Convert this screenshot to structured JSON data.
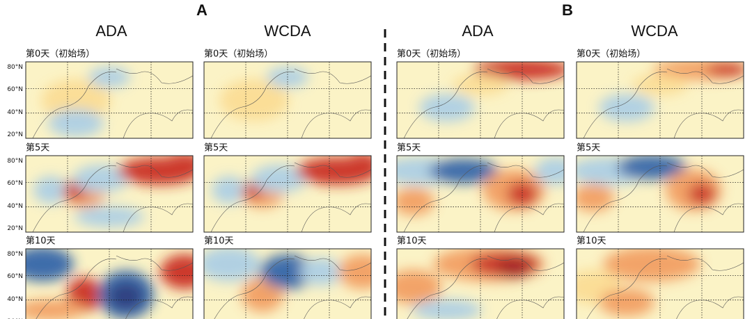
{
  "panels": [
    {
      "label": "A",
      "columns": [
        {
          "title": "ADA",
          "rows": [
            "第0天（初始场）",
            "第5天",
            "第10天"
          ]
        },
        {
          "title": "WCDA",
          "rows": [
            "第0天（初始场）",
            "第5天",
            "第10天"
          ]
        }
      ]
    },
    {
      "label": "B",
      "columns": [
        {
          "title": "ADA",
          "rows": [
            "第0天（初始场）",
            "第5天",
            "第10天"
          ]
        },
        {
          "title": "WCDA",
          "rows": [
            "第0天（初始场）",
            "第5天",
            "第10天"
          ]
        }
      ]
    }
  ],
  "lat_labels": [
    "80°N",
    "60°N",
    "40°N",
    "20°N"
  ]
}
